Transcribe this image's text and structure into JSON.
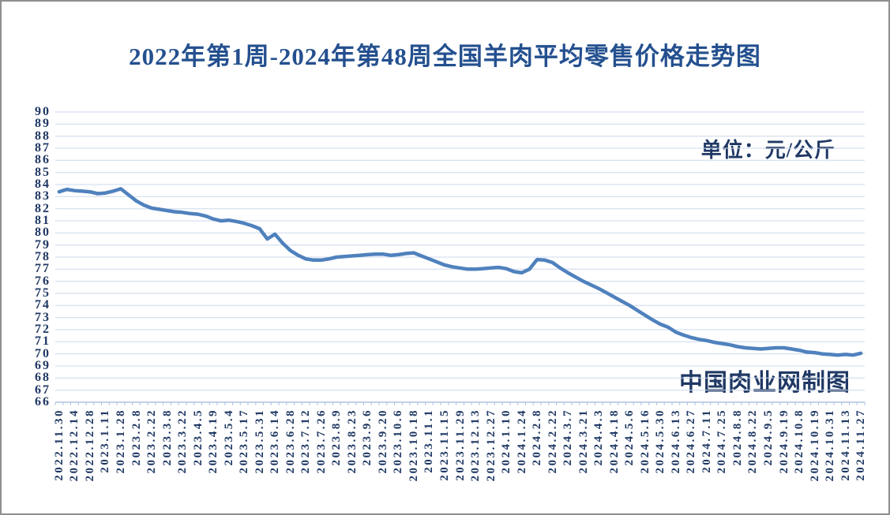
{
  "page": {
    "background": "#ffffff",
    "border_color": "#8f8f8f"
  },
  "chart_data": {
    "type": "line",
    "title": "2022年第1周-2024年第48周全国羊肉平均零售价格走势图",
    "unit_label": "单位：元/公斤",
    "watermark": "中国肉业网制图",
    "xlabel": "",
    "ylabel": "",
    "ylim": [
      66,
      90
    ],
    "ytick_step": 1,
    "grid": true,
    "legend_position": "none",
    "title_color": "#24508f",
    "text_color": "#1f3864",
    "line_color": "#4f81bd",
    "grid_color": "#ccd9ec",
    "axis_color": "#aec4e0",
    "label_every": 2,
    "x_labels": [
      "2022.11.30",
      "2022.12.14",
      "2022.12.28",
      "2023.1.11",
      "2023.1.28",
      "2023.2.8",
      "2023.2.22",
      "2023.3.8",
      "2023.3.22",
      "2023.4.5",
      "2023.4.19",
      "2023.5.4",
      "2023.5.17",
      "2023.5.31",
      "2023.6.14",
      "2023.6.28",
      "2023.7.12",
      "2023.7.26",
      "2023.8.9",
      "2023.8.23",
      "2023.9.6",
      "2023.9.20",
      "2023.10.6",
      "2023.10.18",
      "2023.11.1",
      "2023.11.15",
      "2023.11.29",
      "2023.12.13",
      "2023.12.27",
      "2024.1.10",
      "2024.1.24",
      "2024.2.8",
      "2024.2.22",
      "2024.3.7",
      "2024.3.21",
      "2024.4.3",
      "2024.4.18",
      "2024.5.6",
      "2024.5.16",
      "2024.5.30",
      "2024.6.13",
      "2024.6.27",
      "2024.7.11",
      "2024.7.25",
      "2024.8.8",
      "2024.8.22",
      "2024.9.5",
      "2024.9.19",
      "2024.10.8",
      "2024.10.19",
      "2024.10.31",
      "2024.11.13",
      "2024.11.27"
    ],
    "values": [
      83.4,
      83.6,
      83.5,
      83.45,
      83.4,
      83.25,
      83.3,
      83.45,
      83.65,
      83.15,
      82.65,
      82.3,
      82.05,
      81.95,
      81.85,
      81.75,
      81.7,
      81.6,
      81.55,
      81.4,
      81.15,
      81.0,
      81.05,
      80.95,
      80.8,
      80.6,
      80.35,
      79.5,
      79.9,
      79.15,
      78.55,
      78.15,
      77.85,
      77.75,
      77.75,
      77.85,
      78.0,
      78.05,
      78.1,
      78.15,
      78.2,
      78.25,
      78.25,
      78.15,
      78.2,
      78.3,
      78.35,
      78.1,
      77.85,
      77.6,
      77.35,
      77.2,
      77.1,
      77.0,
      77.0,
      77.05,
      77.1,
      77.15,
      77.05,
      76.8,
      76.7,
      77.0,
      77.8,
      77.75,
      77.55,
      77.1,
      76.7,
      76.35,
      76.0,
      75.7,
      75.4,
      75.05,
      74.7,
      74.35,
      74.0,
      73.6,
      73.2,
      72.8,
      72.45,
      72.2,
      71.8,
      71.55,
      71.35,
      71.2,
      71.1,
      70.95,
      70.85,
      70.75,
      70.6,
      70.5,
      70.45,
      70.4,
      70.45,
      70.5,
      70.5,
      70.4,
      70.3,
      70.15,
      70.1,
      70.0,
      69.95,
      69.9,
      69.95,
      69.9,
      70.05
    ]
  }
}
